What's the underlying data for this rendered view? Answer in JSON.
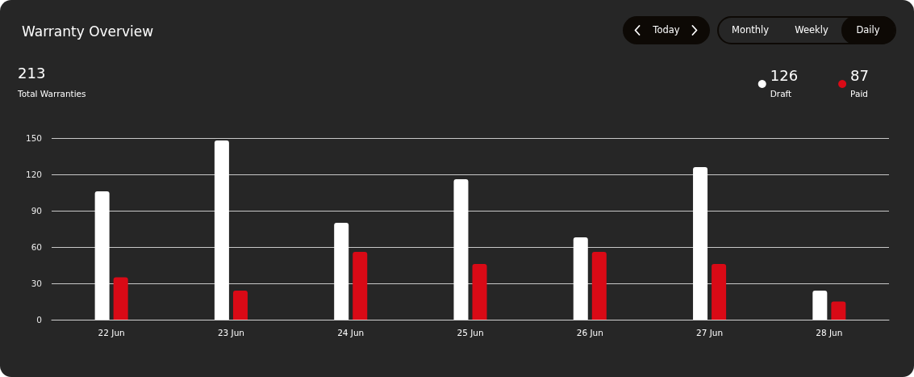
{
  "chart_data": {
    "type": "bar",
    "title": "Warranty Overview",
    "categories": [
      "22 Jun",
      "23 Jun",
      "24 Jun",
      "25 Jun",
      "26 Jun",
      "27 Jun",
      "28 Jun"
    ],
    "series": [
      {
        "name": "Draft",
        "color": "#ffffff",
        "values": [
          106,
          148,
          80,
          116,
          68,
          126,
          24
        ]
      },
      {
        "name": "Paid",
        "color": "#d90a16",
        "values": [
          35,
          24,
          56,
          46,
          56,
          46,
          15
        ]
      }
    ],
    "ylim": [
      0,
      150
    ],
    "yticks": [
      0,
      30,
      60,
      90,
      120,
      150
    ],
    "grid": "y",
    "legend": "top right",
    "annotations": [
      "213",
      "Total Warranties",
      "126",
      "87",
      "Today",
      "Monthly",
      "Weekly",
      "Daily"
    ]
  }
}
